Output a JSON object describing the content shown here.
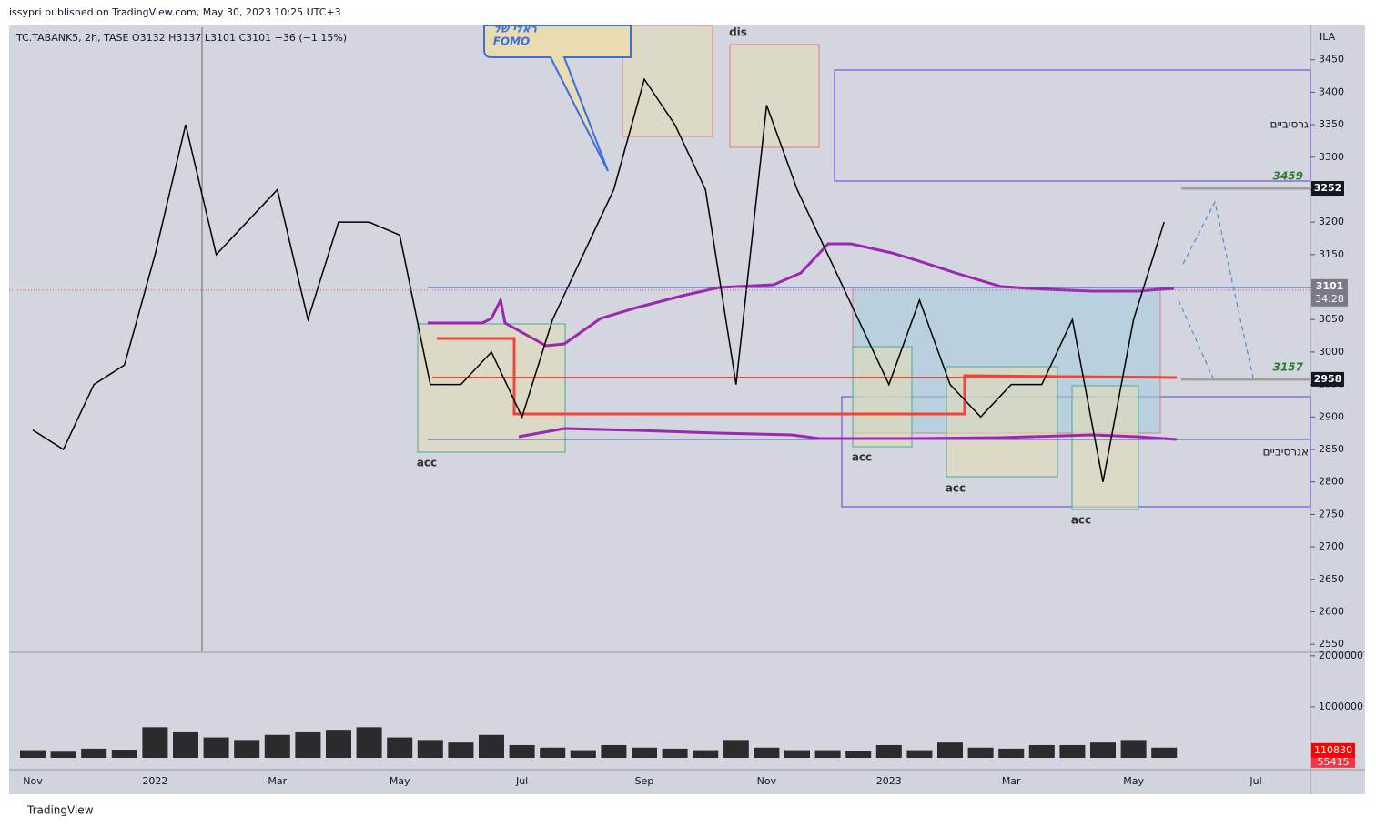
{
  "header": {
    "publisher_line": "issypri published on TradingView.com, May 30, 2023 10:25 UTC+3",
    "symbol_line": "TC.TABANK5, 2h, TASE  O3132  H3137  L3101  C3101  −36 (−1.15%)",
    "currency": "ILA"
  },
  "footer": {
    "brand": "TradingView"
  },
  "chart_data": [
    {
      "type": "line",
      "categories": [
        "Nov",
        null,
        null,
        null,
        "2022",
        null,
        null,
        null,
        "Mar",
        null,
        null,
        null,
        "May",
        null,
        null,
        null,
        "Jul",
        null,
        null,
        null,
        "Sep",
        null,
        null,
        null,
        "Nov",
        null,
        null,
        null,
        "2023",
        null,
        null,
        null,
        "Mar",
        null,
        null,
        null,
        "May",
        null,
        null,
        null,
        "Jul",
        null
      ],
      "series": [
        {
          "name": "TC.TABANK5",
          "color": "#000000",
          "values": [
            2880,
            2850,
            2950,
            2980,
            3150,
            3350,
            3150,
            3200,
            3250,
            3050,
            3200,
            3200,
            3180,
            2950,
            2950,
            3000,
            2900,
            3050,
            3150,
            3250,
            3420,
            3350,
            3250,
            2950,
            3380,
            3250,
            3150,
            3050,
            2950,
            3080,
            2950,
            2900,
            2950,
            2950,
            3050,
            2800,
            3050,
            3200,
            null,
            null,
            null,
            null
          ]
        }
      ],
      "ylim": [
        2539,
        3500
      ],
      "yticks": [
        2550,
        2600,
        2650,
        2700,
        2750,
        2800,
        2850,
        2900,
        2950,
        3000,
        3050,
        3100,
        3150,
        3200,
        3250,
        3300,
        3350,
        3400,
        3450
      ],
      "levels": [
        3252,
        2958
      ],
      "last_price": 3101,
      "countdown": "34:28",
      "annotations": [
        "acc",
        "acc",
        "acc",
        "acc",
        "dis",
        "ראלי של",
        "FOMO",
        "גרסיביים",
        "אגרסיביים",
        "3459",
        "3157"
      ]
    },
    {
      "type": "bar",
      "name": "Volume",
      "color": "#000000",
      "values": [
        150000,
        120000,
        180000,
        160000,
        600000,
        500000,
        400000,
        350000,
        450000,
        500000,
        550000,
        600000,
        400000,
        350000,
        300000,
        450000,
        250000,
        200000,
        150000,
        250000,
        200000,
        180000,
        150000,
        350000,
        200000,
        150000,
        150000,
        130000,
        250000,
        150000,
        300000,
        200000,
        180000,
        250000,
        250000,
        300000,
        350000,
        200000,
        null,
        null,
        null,
        null
      ],
      "ylim": [
        0,
        2050000
      ],
      "yticks": [
        1000000,
        2000000
      ],
      "last_volume": 110830,
      "volume_ma": 55415
    }
  ]
}
